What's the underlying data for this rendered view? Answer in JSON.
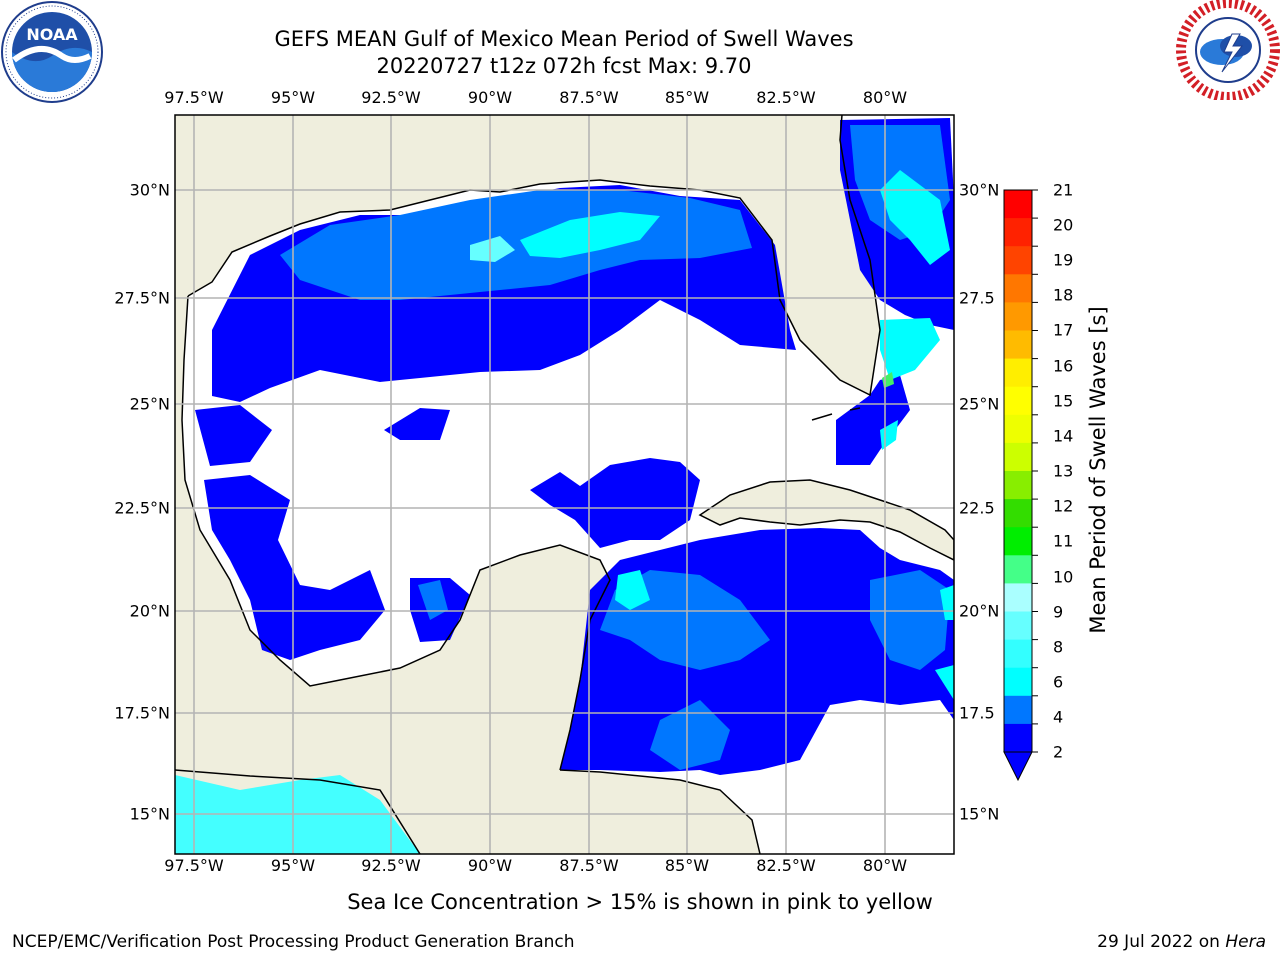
{
  "title": {
    "line1": "GEFS MEAN Gulf of Mexico Mean Period of Swell Waves",
    "line2": "20220727 t12z 072h fcst   Max: 9.70"
  },
  "map": {
    "lon_ticks": [
      "97.5°W",
      "95°W",
      "92.5°W",
      "90°W",
      "87.5°W",
      "85°W",
      "82.5°W",
      "80°W"
    ],
    "lat_ticks": [
      "30°N",
      "27.5°N",
      "25°N",
      "22.5°N",
      "20°N",
      "17.5°N",
      "15°N"
    ],
    "lat_ticks_right": [
      "30°N",
      "27.5",
      "25°N",
      "22.5",
      "20°N",
      "17.5",
      "15°N"
    ],
    "colors": {
      "land": "#efeedd",
      "ocean_no_data": "#ffffff",
      "grid": "#b4b4b4",
      "coast": "#000000"
    }
  },
  "colorbar": {
    "label": "Mean Period of Swell Waves [s]",
    "ticks": [
      "21",
      "20",
      "19",
      "18",
      "17",
      "16",
      "15",
      "14",
      "13",
      "12",
      "11",
      "10",
      "9",
      "8",
      "6",
      "4",
      "2"
    ],
    "colors": [
      "#ff0000",
      "#ff2200",
      "#ff4400",
      "#ff7700",
      "#ff9900",
      "#ffbb00",
      "#ffee00",
      "#ffff00",
      "#eeff00",
      "#ccff00",
      "#88ee00",
      "#33dd00",
      "#00ee00",
      "#44ff88",
      "#aaffff",
      "#66ffff",
      "#33ffff",
      "#00ffff",
      "#0077ff",
      "#0000ff"
    ]
  },
  "caption": "Sea Ice Concentration > 15% is shown in pink to yellow",
  "footer": {
    "left": "NCEP/EMC/Verification Post Processing Product Generation Branch",
    "right_date": "29 Jul 2022 on ",
    "right_host": "Hera"
  },
  "logos": {
    "left": "NOAA",
    "right": "NATIONAL WEATHER SERVICE"
  }
}
